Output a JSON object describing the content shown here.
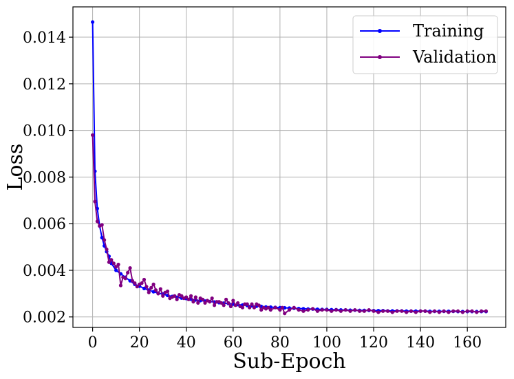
{
  "chart_data": {
    "type": "line",
    "title": "",
    "xlabel": "Sub-Epoch",
    "ylabel": "Loss",
    "xlim": [
      -8.4,
      176.4
    ],
    "ylim": [
      0.00155,
      0.0153
    ],
    "xticks": [
      0,
      20,
      40,
      60,
      80,
      100,
      120,
      140,
      160
    ],
    "xtick_labels": [
      "0",
      "20",
      "40",
      "60",
      "80",
      "100",
      "120",
      "140",
      "160"
    ],
    "yticks": [
      0.002,
      0.004,
      0.006,
      0.008,
      0.01,
      0.012,
      0.014
    ],
    "ytick_labels": [
      "0.002",
      "0.004",
      "0.006",
      "0.008",
      "0.010",
      "0.012",
      "0.014"
    ],
    "grid": true,
    "legend_position": "top-right",
    "series": [
      {
        "name": "Training",
        "color": "#0000ff",
        "x": [
          0,
          1,
          2,
          3,
          4,
          5,
          6,
          7,
          8,
          10,
          12,
          14,
          16,
          18,
          20,
          22,
          24,
          26,
          28,
          30,
          32,
          34,
          36,
          38,
          40,
          42,
          44,
          46,
          48,
          50,
          52,
          54,
          56,
          58,
          60,
          62,
          64,
          66,
          68,
          70,
          72,
          74,
          76,
          78,
          80,
          82,
          84,
          86,
          88,
          90,
          92,
          94,
          96,
          98,
          100,
          102,
          104,
          106,
          108,
          110,
          112,
          114,
          116,
          118,
          120,
          122,
          124,
          126,
          128,
          130,
          132,
          134,
          136,
          138,
          140,
          142,
          144,
          146,
          148,
          150,
          152,
          154,
          156,
          158,
          160,
          162,
          164,
          166,
          168
        ],
        "y": [
          0.01465,
          0.00825,
          0.00665,
          0.0059,
          0.0054,
          0.00505,
          0.0048,
          0.0046,
          0.0043,
          0.004,
          0.00385,
          0.0037,
          0.00355,
          0.0034,
          0.00332,
          0.00322,
          0.00315,
          0.00308,
          0.00302,
          0.00298,
          0.00292,
          0.00288,
          0.00284,
          0.00281,
          0.00279,
          0.00276,
          0.00273,
          0.0027,
          0.00268,
          0.00266,
          0.00264,
          0.00261,
          0.00259,
          0.00257,
          0.00255,
          0.00253,
          0.00251,
          0.00249,
          0.00248,
          0.00246,
          0.00245,
          0.00243,
          0.00242,
          0.00241,
          0.0024,
          0.00239,
          0.00238,
          0.00237,
          0.00236,
          0.00235,
          0.00234,
          0.00234,
          0.00233,
          0.00232,
          0.00232,
          0.00231,
          0.00231,
          0.0023,
          0.0023,
          0.00229,
          0.00229,
          0.00228,
          0.00228,
          0.00228,
          0.00227,
          0.00227,
          0.00227,
          0.00226,
          0.00226,
          0.00226,
          0.00226,
          0.00225,
          0.00225,
          0.00225,
          0.00225,
          0.00225,
          0.00224,
          0.00224,
          0.00224,
          0.00224,
          0.00224,
          0.00224,
          0.00223,
          0.00223,
          0.00223,
          0.00223,
          0.00223,
          0.00223,
          0.00223
        ]
      },
      {
        "name": "Validation",
        "color": "#800080",
        "x": [
          0,
          1,
          2,
          3,
          4,
          5,
          6,
          7,
          8,
          9,
          10,
          11,
          12,
          13,
          14,
          15,
          16,
          17,
          18,
          19,
          20,
          21,
          22,
          23,
          24,
          25,
          26,
          27,
          28,
          29,
          30,
          31,
          32,
          33,
          34,
          35,
          36,
          37,
          38,
          39,
          40,
          41,
          42,
          43,
          44,
          45,
          46,
          47,
          48,
          49,
          50,
          51,
          52,
          53,
          54,
          55,
          56,
          57,
          58,
          59,
          60,
          61,
          62,
          63,
          64,
          65,
          66,
          67,
          68,
          69,
          70,
          71,
          72,
          73,
          74,
          75,
          76,
          78,
          80,
          81,
          82,
          84,
          86,
          88,
          90,
          92,
          94,
          96,
          98,
          100,
          102,
          104,
          106,
          108,
          110,
          112,
          114,
          116,
          118,
          120,
          122,
          124,
          126,
          128,
          130,
          132,
          134,
          136,
          138,
          140,
          142,
          144,
          146,
          148,
          150,
          152,
          154,
          156,
          158,
          160,
          162,
          164,
          166,
          168
        ],
        "y": [
          0.0098,
          0.00695,
          0.0061,
          0.0059,
          0.00595,
          0.0053,
          0.0049,
          0.00435,
          0.00445,
          0.0043,
          0.00415,
          0.00425,
          0.00335,
          0.0037,
          0.00365,
          0.0039,
          0.0041,
          0.00355,
          0.00345,
          0.0033,
          0.0034,
          0.00345,
          0.0036,
          0.0033,
          0.00305,
          0.00325,
          0.0034,
          0.00315,
          0.003,
          0.0032,
          0.0029,
          0.00305,
          0.0031,
          0.0028,
          0.00285,
          0.0029,
          0.00275,
          0.00295,
          0.0029,
          0.0028,
          0.00285,
          0.00275,
          0.0029,
          0.00265,
          0.00285,
          0.0026,
          0.0028,
          0.00275,
          0.0026,
          0.0027,
          0.00265,
          0.0028,
          0.0025,
          0.00265,
          0.00265,
          0.0026,
          0.0025,
          0.00275,
          0.0026,
          0.00245,
          0.0027,
          0.0025,
          0.0026,
          0.00245,
          0.0024,
          0.00255,
          0.00255,
          0.0024,
          0.00255,
          0.0024,
          0.00255,
          0.0025,
          0.0023,
          0.0024,
          0.00235,
          0.0024,
          0.0023,
          0.0024,
          0.0023,
          0.0024,
          0.00215,
          0.0023,
          0.0024,
          0.0023,
          0.00225,
          0.0023,
          0.00235,
          0.00225,
          0.0023,
          0.0023,
          0.00225,
          0.0023,
          0.00225,
          0.0023,
          0.00225,
          0.0023,
          0.00225,
          0.00225,
          0.0023,
          0.00225,
          0.0022,
          0.00225,
          0.00225,
          0.0022,
          0.00225,
          0.00225,
          0.0022,
          0.00225,
          0.0022,
          0.00225,
          0.00225,
          0.0022,
          0.00225,
          0.0022,
          0.00225,
          0.0022,
          0.00225,
          0.00225,
          0.0022,
          0.00225,
          0.00225,
          0.0022,
          0.00225,
          0.00225
        ]
      }
    ]
  }
}
